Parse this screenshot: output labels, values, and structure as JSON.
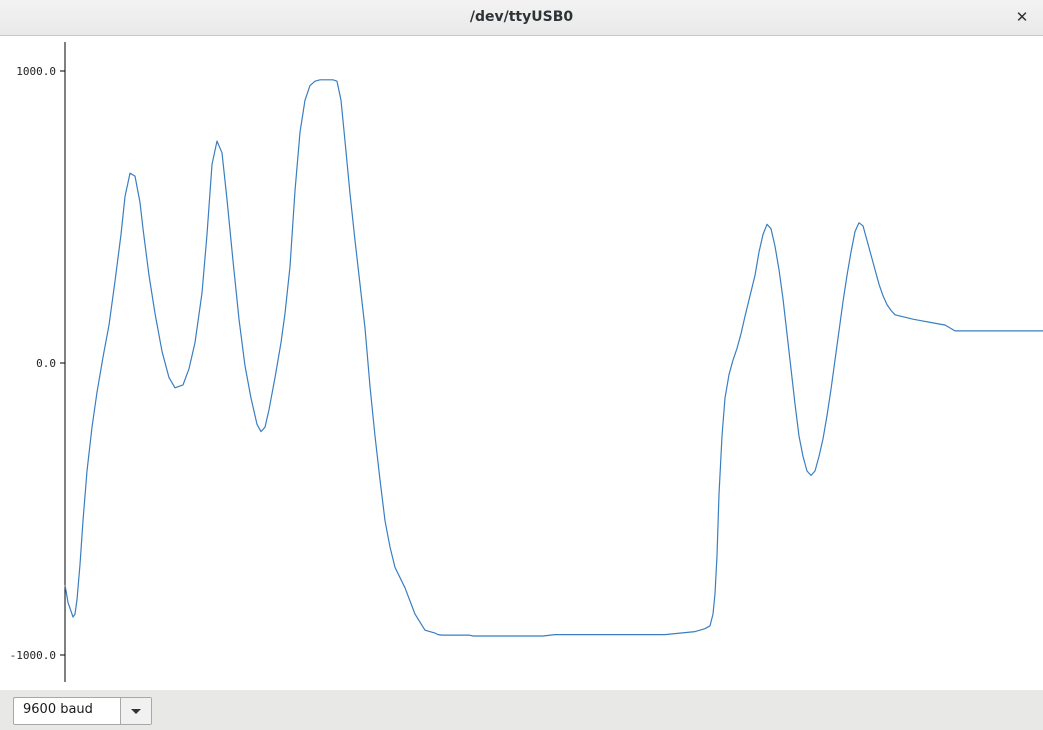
{
  "window": {
    "title": "/dev/ttyUSB0",
    "close_glyph": "✕"
  },
  "footer": {
    "baud_select": {
      "selected": "9600 baud",
      "icon": "chevron-down-icon"
    }
  },
  "chart_data": {
    "type": "line",
    "title": "",
    "xlabel": "",
    "ylabel": "",
    "ylim": [
      -1000,
      1000
    ],
    "yticks": [
      1000,
      0,
      -1000
    ],
    "ytick_labels": [
      "1000.0",
      "0.0",
      "-1000.0"
    ],
    "grid": false,
    "line_color": "#3a7ec0",
    "series": [
      {
        "x": [
          0,
          3,
          8,
          10,
          12,
          15,
          18,
          22,
          27,
          32,
          38,
          44,
          50,
          56,
          60,
          65,
          70,
          75,
          78,
          81,
          84,
          90,
          97,
          104,
          110,
          118,
          124,
          130,
          137,
          142,
          147,
          152,
          157,
          162,
          168,
          174,
          180,
          186,
          192,
          196,
          200,
          204,
          210,
          216,
          220,
          225,
          230,
          235,
          240,
          245,
          250,
          255,
          260,
          264,
          268,
          272,
          276,
          280,
          285,
          290,
          295,
          300,
          305,
          310,
          315,
          320,
          325,
          330,
          340,
          350,
          360,
          370,
          373,
          377,
          380,
          384,
          388,
          392,
          396,
          400,
          404,
          408,
          412,
          416,
          420,
          425,
          430,
          436,
          442,
          448,
          454,
          462,
          470,
          478,
          490,
          510,
          530,
          560,
          600,
          630,
          640,
          645,
          648,
          650,
          652,
          654,
          657,
          660,
          664,
          668,
          672,
          676,
          680,
          685,
          690,
          694,
          698,
          702,
          706,
          710,
          714,
          718,
          722,
          726,
          730,
          734,
          738,
          742,
          746,
          750,
          754,
          758,
          762,
          766,
          770,
          774,
          778,
          782,
          786,
          790,
          794,
          798,
          802,
          806,
          810,
          814,
          818,
          822,
          826,
          830,
          836,
          842,
          848,
          856,
          864,
          872,
          880,
          890,
          900,
          910,
          920,
          930,
          940,
          950,
          960,
          970,
          978
        ],
        "y": [
          -760,
          -820,
          -870,
          -860,
          -810,
          -690,
          -540,
          -370,
          -220,
          -100,
          20,
          130,
          280,
          440,
          570,
          650,
          640,
          550,
          460,
          380,
          300,
          170,
          40,
          -50,
          -85,
          -75,
          -20,
          70,
          240,
          440,
          680,
          760,
          720,
          560,
          350,
          150,
          -10,
          -120,
          -210,
          -235,
          -220,
          -160,
          -50,
          70,
          170,
          330,
          590,
          790,
          900,
          950,
          965,
          970,
          970,
          970,
          970,
          965,
          900,
          760,
          580,
          420,
          270,
          120,
          -80,
          -250,
          -400,
          -540,
          -630,
          -700,
          -770,
          -860,
          -915,
          -925,
          -930,
          -932,
          -932,
          -932,
          -932,
          -932,
          -932,
          -932,
          -932,
          -935,
          -935,
          -935,
          -935,
          -935,
          -935,
          -935,
          -935,
          -935,
          -935,
          -935,
          -935,
          -935,
          -930,
          -930,
          -930,
          -930,
          -930,
          -920,
          -910,
          -900,
          -860,
          -790,
          -660,
          -450,
          -250,
          -120,
          -40,
          10,
          50,
          100,
          160,
          230,
          300,
          380,
          440,
          475,
          460,
          400,
          320,
          220,
          100,
          -20,
          -140,
          -250,
          -320,
          -370,
          -385,
          -370,
          -320,
          -260,
          -180,
          -90,
          10,
          110,
          210,
          300,
          380,
          450,
          480,
          470,
          420,
          370,
          320,
          270,
          230,
          200,
          180,
          165,
          160,
          155,
          150,
          145,
          140,
          135,
          130,
          110,
          110,
          110,
          110,
          110,
          110,
          110,
          110,
          110,
          110
        ]
      }
    ]
  }
}
